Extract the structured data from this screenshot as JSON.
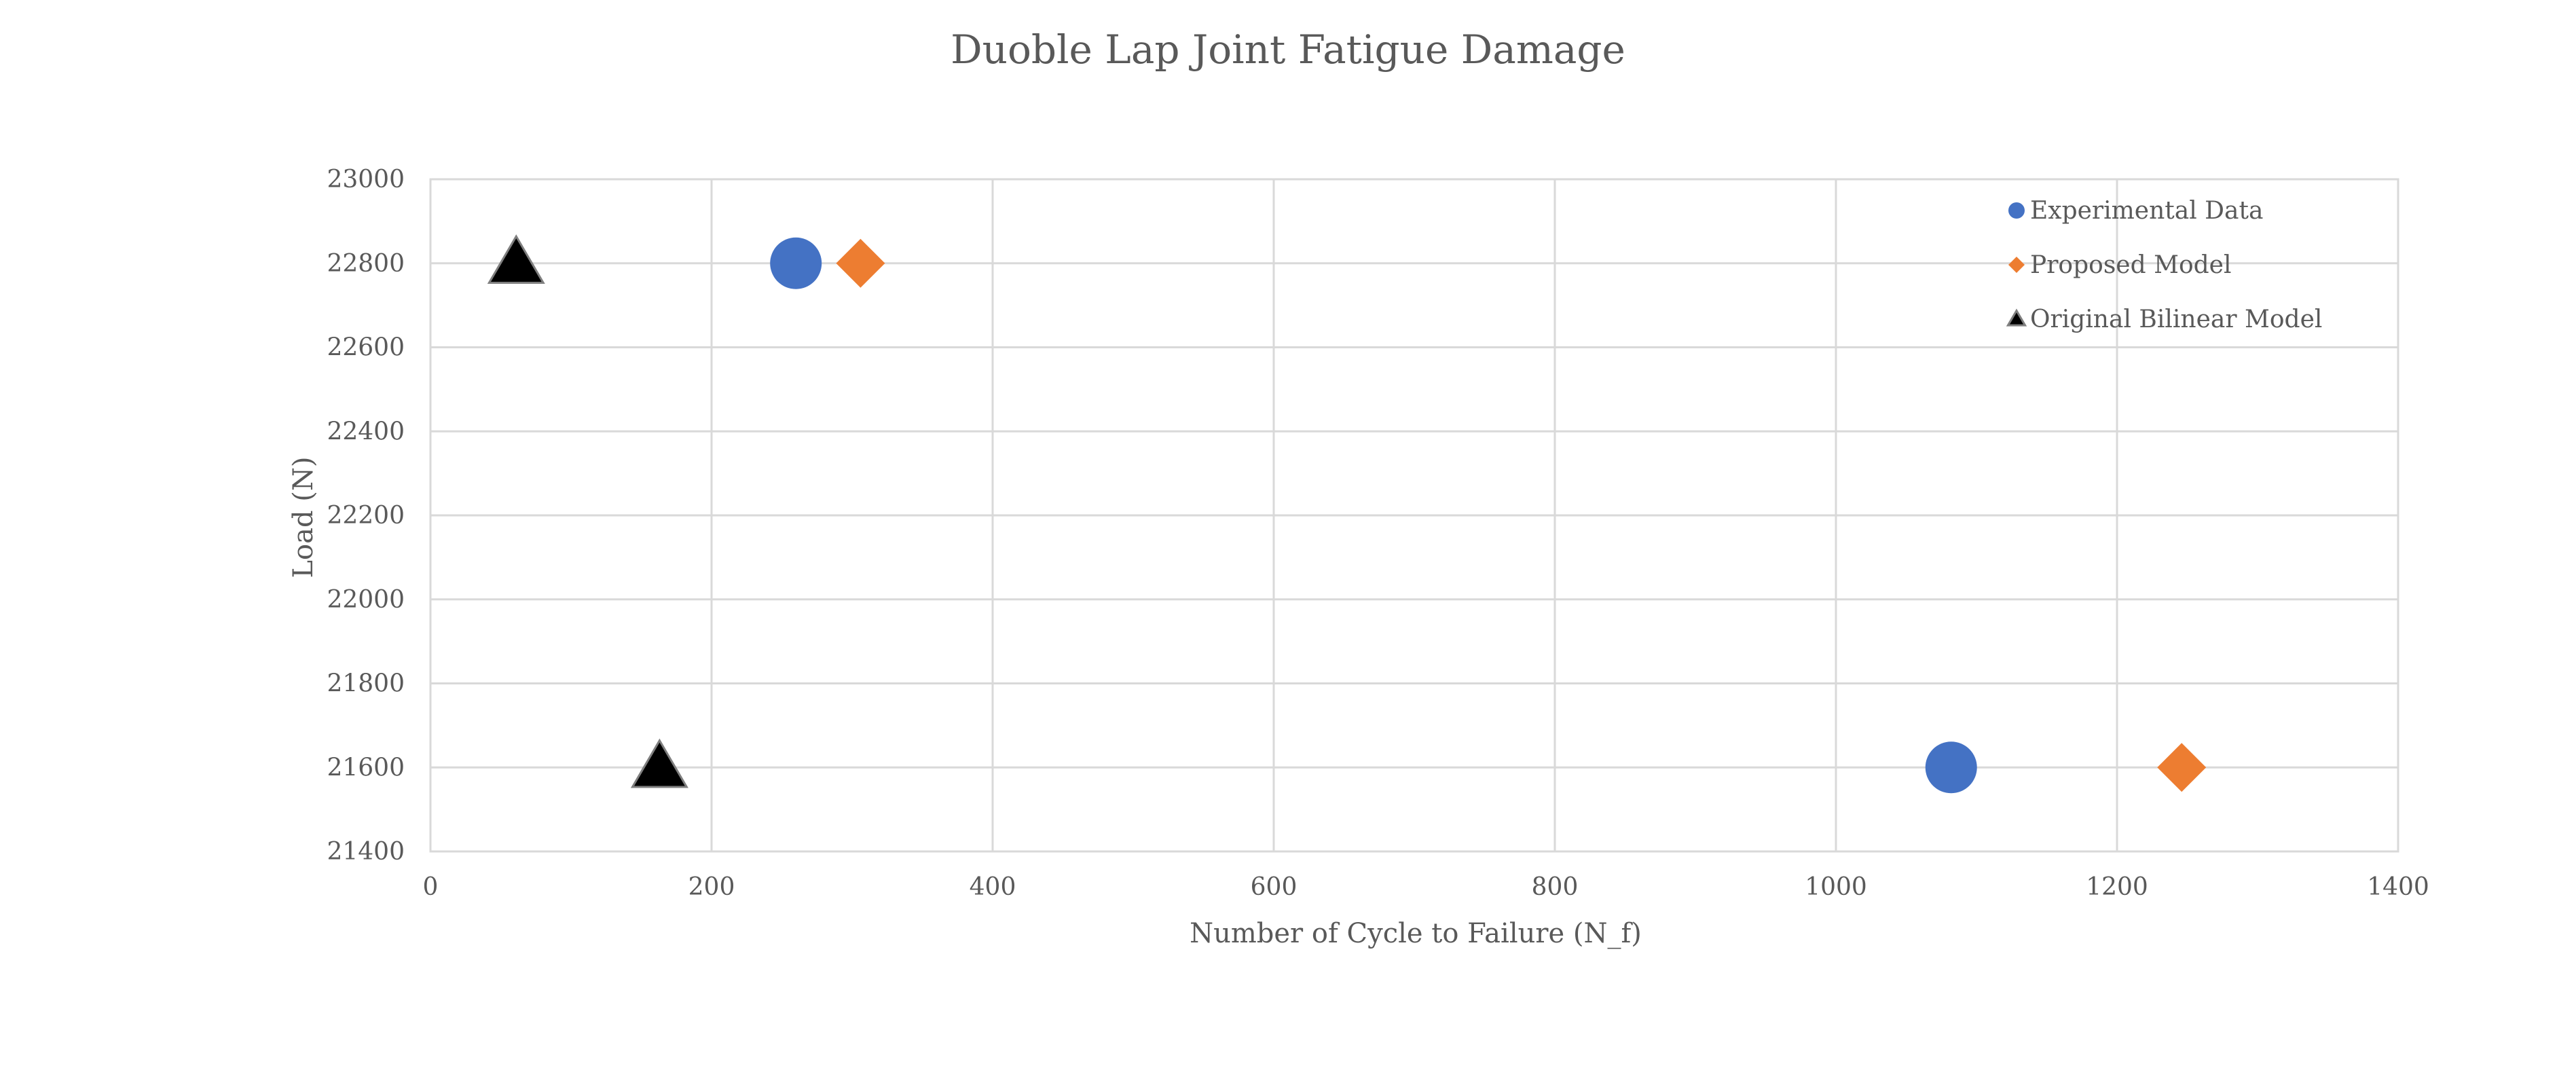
{
  "chart_data": {
    "type": "scatter",
    "title": "Duoble Lap Joint Fatigue Damage",
    "xlabel": "Number of Cycle to Failure (N_f)",
    "ylabel": "Load (N)",
    "xlim": [
      0,
      1400
    ],
    "ylim": [
      21400,
      23000
    ],
    "xticks": [
      "0",
      "200",
      "400",
      "600",
      "800",
      "1000",
      "1200",
      "1400"
    ],
    "yticks": [
      "21400",
      "21600",
      "21800",
      "22000",
      "22200",
      "22400",
      "22600",
      "22800",
      "23000"
    ],
    "grid": true,
    "legend_position": "top-right",
    "series": [
      {
        "name": "Experimental Data",
        "marker": "circle",
        "color": "#4472c4",
        "points": [
          {
            "x": 260,
            "y": 22800
          },
          {
            "x": 1082,
            "y": 21600
          }
        ]
      },
      {
        "name": "Proposed Model",
        "marker": "diamond",
        "color": "#ed7d31",
        "points": [
          {
            "x": 306,
            "y": 22800
          },
          {
            "x": 1246,
            "y": 21600
          }
        ]
      },
      {
        "name": "Original Bilinear Model",
        "marker": "triangle",
        "color": "#000000",
        "points": [
          {
            "x": 61,
            "y": 22800
          },
          {
            "x": 163,
            "y": 21600
          }
        ]
      }
    ]
  }
}
